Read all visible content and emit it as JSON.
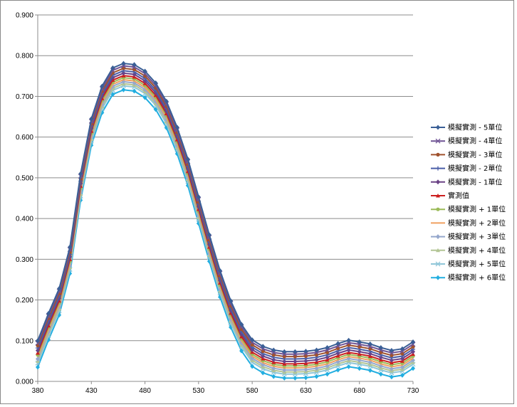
{
  "chart_data": {
    "type": "line",
    "title": "",
    "xlabel": "",
    "ylabel": "",
    "xlim": [
      380,
      730
    ],
    "ylim": [
      0,
      0.9
    ],
    "y_ticks": [
      "0.000",
      "0.100",
      "0.200",
      "0.300",
      "0.400",
      "0.500",
      "0.600",
      "0.700",
      "0.800",
      "0.900"
    ],
    "x_ticks": [
      "380",
      "430",
      "480",
      "530",
      "580",
      "630",
      "680",
      "730"
    ],
    "grid": true,
    "legend_position": "right",
    "x": [
      380,
      390,
      400,
      410,
      420,
      430,
      440,
      450,
      460,
      470,
      480,
      490,
      500,
      510,
      520,
      530,
      540,
      550,
      560,
      570,
      580,
      590,
      600,
      610,
      620,
      630,
      640,
      650,
      660,
      670,
      680,
      690,
      700,
      710,
      720,
      730
    ],
    "base": [
      0.07,
      0.137,
      0.198,
      0.3,
      0.48,
      0.615,
      0.695,
      0.74,
      0.751,
      0.748,
      0.732,
      0.703,
      0.658,
      0.594,
      0.516,
      0.423,
      0.33,
      0.242,
      0.168,
      0.11,
      0.072,
      0.056,
      0.047,
      0.043,
      0.043,
      0.044,
      0.047,
      0.053,
      0.063,
      0.071,
      0.067,
      0.062,
      0.053,
      0.046,
      0.05,
      0.067
    ],
    "series": [
      {
        "name": "模擬實測 - 5單位",
        "offset": 0.03,
        "color": "#3a5f96",
        "marker": "diamond"
      },
      {
        "name": "模擬實測 - 4單位",
        "offset": 0.024,
        "color": "#6f5394",
        "marker": "x"
      },
      {
        "name": "模擬實測 - 3單位",
        "offset": 0.018,
        "color": "#a0522d",
        "marker": "circle"
      },
      {
        "name": "模擬實測 - 2單位",
        "offset": 0.012,
        "color": "#4a5ea8",
        "marker": "plus"
      },
      {
        "name": "模擬實測 - 1單位",
        "offset": 0.006,
        "color": "#6a4285",
        "marker": "diamond"
      },
      {
        "name": "實測值",
        "offset": 0.0,
        "color": "#cc1f1f",
        "marker": "triangle"
      },
      {
        "name": "模擬實測 + 1單位",
        "offset": -0.005,
        "color": "#9bbb59",
        "marker": "circle"
      },
      {
        "name": "模擬實測 + 2單位",
        "offset": -0.01,
        "color": "#f0a060",
        "marker": "none"
      },
      {
        "name": "模擬實測 + 3單位",
        "offset": -0.015,
        "color": "#95a7cc",
        "marker": "diamond"
      },
      {
        "name": "模擬實測 + 4單位",
        "offset": -0.02,
        "color": "#b3c595",
        "marker": "triangle"
      },
      {
        "name": "模擬實測 + 5單位",
        "offset": -0.025,
        "color": "#8fc6d8",
        "marker": "x"
      },
      {
        "name": "模擬實測 + 6單位",
        "offset": -0.035,
        "color": "#22aee0",
        "marker": "diamond"
      }
    ]
  }
}
